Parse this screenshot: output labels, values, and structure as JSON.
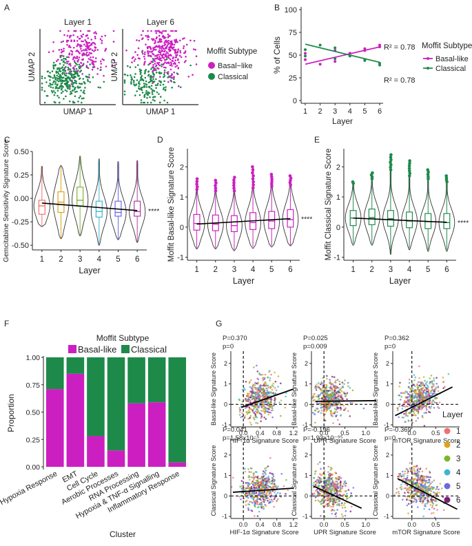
{
  "colors": {
    "basal": "#cc1fc1",
    "classical": "#1e8a4a",
    "layers": [
      "#f0716b",
      "#e0a21a",
      "#7ab62c",
      "#3db5d0",
      "#6b6ae6",
      "#7a1f7a"
    ]
  },
  "panel_labels": [
    "A",
    "B",
    "C",
    "D",
    "E",
    "F",
    "G"
  ],
  "chart_data": [
    {
      "id": "A",
      "type": "scatter",
      "subplots": [
        {
          "title": "Layer 1",
          "xlabel": "UMAP 1",
          "ylabel": "UMAP 2",
          "seed": 11,
          "basal_fraction": 0.45
        },
        {
          "title": "Layer 6",
          "xlabel": "UMAP 1",
          "ylabel": "UMAP 2",
          "seed": 23,
          "basal_fraction": 0.6
        }
      ],
      "legend": {
        "title": "Moffit Subtype",
        "entries": [
          "Basal−like",
          "Classical"
        ]
      }
    },
    {
      "id": "B",
      "type": "scatter",
      "xlabel": "Layer",
      "ylabel": "% of Cells",
      "xlim": [
        1,
        6
      ],
      "ylim": [
        0,
        100
      ],
      "xticks": [
        "1",
        "2",
        "3",
        "4",
        "5",
        "6"
      ],
      "yticks": [
        "0",
        "25",
        "50",
        "75",
        "100"
      ],
      "series": [
        {
          "name": "Basal-like",
          "points": [
            [
              1,
              45
            ],
            [
              1,
              52
            ],
            [
              2,
              40
            ],
            [
              3,
              43
            ],
            [
              3,
              55
            ],
            [
              4,
              52
            ],
            [
              5,
              57
            ],
            [
              5,
              55
            ],
            [
              6,
              59
            ],
            [
              6,
              61
            ]
          ],
          "fit": [
            [
              1,
              40
            ],
            [
              6,
              59
            ]
          ],
          "r2": "R² = 0.78"
        },
        {
          "name": "Classical",
          "points": [
            [
              1,
              56
            ],
            [
              1,
              49
            ],
            [
              2,
              61
            ],
            [
              3,
              58
            ],
            [
              3,
              46
            ],
            [
              4,
              49
            ],
            [
              5,
              44
            ],
            [
              5,
              45
            ],
            [
              6,
              41
            ],
            [
              6,
              39
            ]
          ],
          "fit": [
            [
              1,
              62
            ],
            [
              6,
              42
            ]
          ],
          "r2": "R² = 0.78"
        }
      ],
      "legend": {
        "title": "Moffit Subtype",
        "entries": [
          "Basal-like",
          "Classical"
        ]
      }
    },
    {
      "id": "C",
      "type": "violin-box",
      "xlabel": "Layer",
      "ylabel": "Gemcitabine Sensitivity Signature Score",
      "ylim": [
        -0.55,
        0.5
      ],
      "yticks": [
        "-0.50",
        "-0.25",
        "0.00",
        "0.25",
        "0.50"
      ],
      "categories": [
        "1",
        "2",
        "3",
        "4",
        "5",
        "6"
      ],
      "box": [
        {
          "q1": -0.17,
          "med": -0.08,
          "q3": -0.02,
          "lo": -0.3,
          "hi": 0.32,
          "vmin": -0.3,
          "vmax": 0.34
        },
        {
          "q1": -0.15,
          "med": -0.04,
          "q3": 0.07,
          "lo": -0.43,
          "hi": 0.34,
          "vmin": -0.43,
          "vmax": 0.35
        },
        {
          "q1": -0.08,
          "med": -0.02,
          "q3": 0.12,
          "lo": -0.4,
          "hi": 0.45,
          "vmin": -0.4,
          "vmax": 0.45
        },
        {
          "q1": -0.2,
          "med": -0.14,
          "q3": -0.03,
          "lo": -0.5,
          "hi": 0.42,
          "vmin": -0.5,
          "vmax": 0.42
        },
        {
          "q1": -0.19,
          "med": -0.15,
          "q3": -0.03,
          "lo": -0.44,
          "hi": 0.39,
          "vmin": -0.44,
          "vmax": 0.39
        },
        {
          "q1": -0.19,
          "med": -0.14,
          "q3": -0.03,
          "lo": -0.47,
          "hi": 0.4,
          "vmin": -0.47,
          "vmax": 0.4
        }
      ],
      "box_colors": [
        "#f0716b",
        "#e0a21a",
        "#7ab62c",
        "#3db5d0",
        "#6b6ae6",
        "#b23aa8"
      ],
      "trend": [
        [
          1,
          -0.05
        ],
        [
          6,
          -0.13
        ]
      ],
      "annotation": "****"
    },
    {
      "id": "D",
      "type": "violin-box",
      "xlabel": "Layer",
      "ylabel": "Moffit Basal-like Signature Score",
      "ylim": [
        -1.1,
        2.6
      ],
      "yticks": [
        "-1",
        "0",
        "1",
        "2"
      ],
      "categories": [
        "1",
        "2",
        "3",
        "4",
        "5",
        "6"
      ],
      "box": [
        {
          "q1": -0.1,
          "med": 0.12,
          "q3": 0.42,
          "lo": -0.7,
          "hi": 1.25,
          "vmin": -0.72,
          "vmax": 1.6
        },
        {
          "q1": -0.12,
          "med": 0.1,
          "q3": 0.4,
          "lo": -0.7,
          "hi": 1.2,
          "vmin": -0.72,
          "vmax": 1.55
        },
        {
          "q1": -0.15,
          "med": 0.05,
          "q3": 0.38,
          "lo": -0.75,
          "hi": 1.2,
          "vmin": -0.78,
          "vmax": 1.65
        },
        {
          "q1": -0.08,
          "med": 0.15,
          "q3": 0.48,
          "lo": -0.65,
          "hi": 1.3,
          "vmin": -0.7,
          "vmax": 2.0
        },
        {
          "q1": -0.05,
          "med": 0.2,
          "q3": 0.52,
          "lo": -0.62,
          "hi": 1.35,
          "vmin": -0.66,
          "vmax": 1.75
        },
        {
          "q1": 0.0,
          "med": 0.25,
          "q3": 0.58,
          "lo": -0.6,
          "hi": 1.4,
          "vmin": -0.62,
          "vmax": 1.7
        }
      ],
      "box_colors": [
        "#cc1fc1",
        "#cc1fc1",
        "#cc1fc1",
        "#cc1fc1",
        "#cc1fc1",
        "#cc1fc1"
      ],
      "trend": [
        [
          1,
          0.1
        ],
        [
          6,
          0.28
        ]
      ],
      "annotation": "****"
    },
    {
      "id": "E",
      "type": "violin-box",
      "xlabel": "Layer",
      "ylabel": "Moffit Classical Signature Score",
      "ylim": [
        -1.1,
        2.6
      ],
      "yticks": [
        "-1",
        "0",
        "1",
        "2"
      ],
      "categories": [
        "1",
        "2",
        "3",
        "4",
        "5",
        "6"
      ],
      "box": [
        {
          "q1": 0.05,
          "med": 0.3,
          "q3": 0.55,
          "lo": -0.55,
          "hi": 1.45,
          "vmin": -0.6,
          "vmax": 1.5
        },
        {
          "q1": 0.08,
          "med": 0.32,
          "q3": 0.6,
          "lo": -0.55,
          "hi": 1.6,
          "vmin": -0.6,
          "vmax": 1.8
        },
        {
          "q1": 0.03,
          "med": 0.28,
          "q3": 0.55,
          "lo": -0.85,
          "hi": 1.9,
          "vmin": -0.9,
          "vmax": 2.4
        },
        {
          "q1": -0.02,
          "med": 0.2,
          "q3": 0.5,
          "lo": -0.7,
          "hi": 1.7,
          "vmin": -0.75,
          "vmax": 2.2
        },
        {
          "q1": -0.05,
          "med": 0.18,
          "q3": 0.45,
          "lo": -0.75,
          "hi": 1.6,
          "vmin": -0.8,
          "vmax": 1.9
        },
        {
          "q1": -0.05,
          "med": 0.15,
          "q3": 0.45,
          "lo": -0.75,
          "hi": 1.5,
          "vmin": -0.8,
          "vmax": 1.7
        }
      ],
      "box_colors": [
        "#1e8a4a",
        "#1e8a4a",
        "#1e8a4a",
        "#1e8a4a",
        "#1e8a4a",
        "#1e8a4a"
      ],
      "trend": [
        [
          1,
          0.3
        ],
        [
          6,
          0.16
        ]
      ],
      "annotation": "****"
    },
    {
      "id": "F",
      "type": "bar",
      "stacked": true,
      "title": "Moffit Subtype",
      "xlabel": "Cluster",
      "ylabel": "Proportion",
      "ylim": [
        0,
        1
      ],
      "yticks": [
        "0.00",
        "0.25",
        "0.50",
        "0.75",
        "1.00"
      ],
      "categories": [
        "Hypoxia Response",
        "EMT",
        "Cell Cycle",
        "Aerobic Processes",
        "RNA Processing",
        "Hypoxia & TNF-α Signalling",
        "Inflammatory Response"
      ],
      "series": [
        {
          "name": "Basal-like",
          "values": [
            0.71,
            0.85,
            0.28,
            0.15,
            0.58,
            0.59,
            0.04
          ]
        },
        {
          "name": "Classical",
          "values": [
            0.29,
            0.15,
            0.72,
            0.85,
            0.42,
            0.41,
            0.96
          ]
        }
      ]
    },
    {
      "id": "G",
      "type": "scatter",
      "legend": {
        "title": "Layer",
        "entries": [
          "1",
          "2",
          "3",
          "4",
          "5",
          "6"
        ]
      },
      "subplots": [
        {
          "xlabel": "HIF-1α Signature Score",
          "ylabel": "Basal-like Signature Score",
          "xlim": [
            -0.3,
            1.3
          ],
          "ylim": [
            -1.1,
            2.6
          ],
          "xticks": [
            "0.0",
            "0.4",
            "0.8",
            "1.2"
          ],
          "yticks": [
            "-1",
            "0",
            "1",
            "2"
          ],
          "stat1": "P=0.370",
          "stat2": "p=0",
          "fit": [
            [
              -0.05,
              -0.15
            ],
            [
              1.2,
              0.75
            ]
          ],
          "cx": 0.4,
          "cy": 0.3,
          "sx": 0.22,
          "sy": 0.6,
          "slope": 0.5,
          "seed": 101
        },
        {
          "xlabel": "UPR Signature Score",
          "ylabel": "Basal-like Signature Score",
          "xlim": [
            -0.3,
            1.3
          ],
          "ylim": [
            -1.1,
            2.6
          ],
          "xticks": [
            "0.0",
            "0.5",
            "1.0"
          ],
          "yticks": [
            "-1",
            "0",
            "1",
            "2"
          ],
          "stat1": "P=0.025",
          "stat2": "p=0.009",
          "fit": [
            [
              -0.2,
              0.15
            ],
            [
              1.25,
              0.18
            ]
          ],
          "cx": 0.15,
          "cy": 0.3,
          "sx": 0.2,
          "sy": 0.55,
          "slope": 0.0,
          "seed": 202
        },
        {
          "xlabel": "mTOR Signature Score",
          "ylabel": "Basal-like Signature Score",
          "xlim": [
            -0.4,
            1.0
          ],
          "ylim": [
            -1.1,
            2.6
          ],
          "xticks": [
            "0.0",
            "0.5"
          ],
          "yticks": [
            "-1",
            "0",
            "1",
            "2"
          ],
          "stat1": "P=0.362",
          "stat2": "p=0",
          "fit": [
            [
              -0.35,
              -0.55
            ],
            [
              0.85,
              0.85
            ]
          ],
          "cx": 0.15,
          "cy": 0.3,
          "sx": 0.2,
          "sy": 0.55,
          "slope": 0.9,
          "seed": 303
        },
        {
          "xlabel": "HIF-1α Signature Score",
          "ylabel": "Classical Signature Score",
          "xlim": [
            -0.3,
            1.3
          ],
          "ylim": [
            -1.1,
            2.6
          ],
          "xticks": [
            "0.0",
            "0.4",
            "0.8",
            "1.2"
          ],
          "yticks": [
            "-1",
            "0",
            "1",
            "2"
          ],
          "stat1": "P=0.041",
          "stat2": "p=1.58x10⁻⁵",
          "fit": [
            [
              -0.25,
              0.18
            ],
            [
              1.2,
              0.38
            ]
          ],
          "cx": 0.4,
          "cy": 0.3,
          "sx": 0.22,
          "sy": 0.55,
          "slope": 0.1,
          "seed": 404
        },
        {
          "xlabel": "UPR Signature Score",
          "ylabel": "Classical Signature Score",
          "xlim": [
            -0.3,
            1.3
          ],
          "ylim": [
            -1.1,
            2.6
          ],
          "xticks": [
            "0.0",
            "0.5",
            "1.0"
          ],
          "yticks": [
            "-1",
            "0",
            "1",
            "2"
          ],
          "stat1": "P=-0.196",
          "stat2": "p=1.93x10⁻⁹⁵",
          "fit": [
            [
              -0.25,
              0.48
            ],
            [
              0.9,
              -0.6
            ]
          ],
          "cx": 0.15,
          "cy": 0.3,
          "sx": 0.2,
          "sy": 0.55,
          "slope": -0.5,
          "seed": 505
        },
        {
          "xlabel": "mTOR Signature Score",
          "ylabel": "Classical Signature Score",
          "xlim": [
            -0.4,
            1.0
          ],
          "ylim": [
            -1.1,
            2.6
          ],
          "xticks": [
            "0.0",
            "0.5"
          ],
          "yticks": [
            "-1",
            "0",
            "1",
            "2"
          ],
          "stat1": "P=-0.369",
          "stat2": "p=0",
          "fit": [
            [
              -0.3,
              0.85
            ],
            [
              0.95,
              -0.65
            ]
          ],
          "cx": 0.15,
          "cy": 0.35,
          "sx": 0.2,
          "sy": 0.55,
          "slope": -0.9,
          "seed": 606
        }
      ]
    }
  ]
}
